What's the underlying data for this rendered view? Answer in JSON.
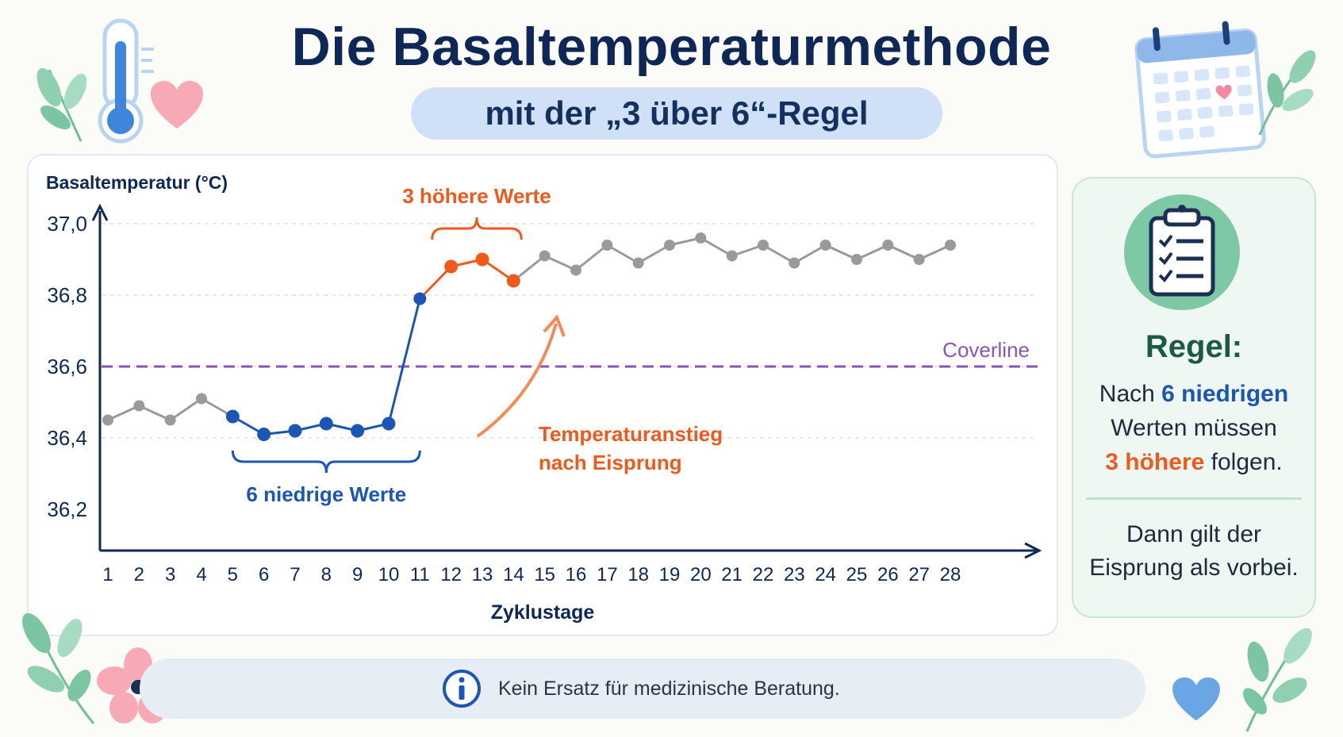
{
  "header": {
    "title": "Die Basaltemperaturmethode",
    "subtitle": "mit der „3 über 6“-Regel"
  },
  "chart_data": {
    "type": "line",
    "ylabel": "Basaltemperatur (°C)",
    "xlabel": "Zyklustage",
    "ylim": [
      36.2,
      37.0
    ],
    "yticks": [
      36.2,
      36.4,
      36.6,
      36.8,
      37.0
    ],
    "ytick_labels": [
      "36,2",
      "36,4",
      "36,6",
      "36,8",
      "37,0"
    ],
    "x": [
      1,
      2,
      3,
      4,
      5,
      6,
      7,
      8,
      9,
      10,
      11,
      12,
      13,
      14,
      15,
      16,
      17,
      18,
      19,
      20,
      21,
      22,
      23,
      24,
      25,
      26,
      27,
      28
    ],
    "values": [
      36.45,
      36.49,
      36.45,
      36.51,
      36.46,
      36.41,
      36.42,
      36.44,
      36.42,
      36.44,
      36.79,
      36.88,
      36.9,
      36.84,
      36.91,
      36.87,
      36.94,
      36.89,
      36.94,
      36.96,
      36.91,
      36.94,
      36.89,
      36.94,
      36.9,
      36.94,
      36.9,
      36.94
    ],
    "highlight_low_days": [
      5,
      6,
      7,
      8,
      9,
      10
    ],
    "highlight_high_days": [
      12,
      13,
      14
    ],
    "coverline": 36.6,
    "grid": true,
    "colors": {
      "normal": "#9a9a9a",
      "low": "#1b55b5",
      "high": "#ef5a1c",
      "coverline": "#8a55b8",
      "axis": "#0e2756"
    },
    "annotations": {
      "coverline": "Coverline",
      "high": "3 höhere Werte",
      "low": "6 niedrige Werte",
      "rise_line1": "Temperaturanstieg",
      "rise_line2": "nach Eisprung"
    }
  },
  "rule_box": {
    "title": "Regel:",
    "line1_pre": "Nach ",
    "line1_strong": "6 niedrigen",
    "line2": "Werten müssen",
    "line3_strong": "3 höhere",
    "line3_post": " folgen.",
    "conclusion_line1": "Dann gilt der",
    "conclusion_line2": "Eisprung als vorbei."
  },
  "footer": {
    "disclaimer": "Kein Ersatz für medizinische Beratung."
  }
}
